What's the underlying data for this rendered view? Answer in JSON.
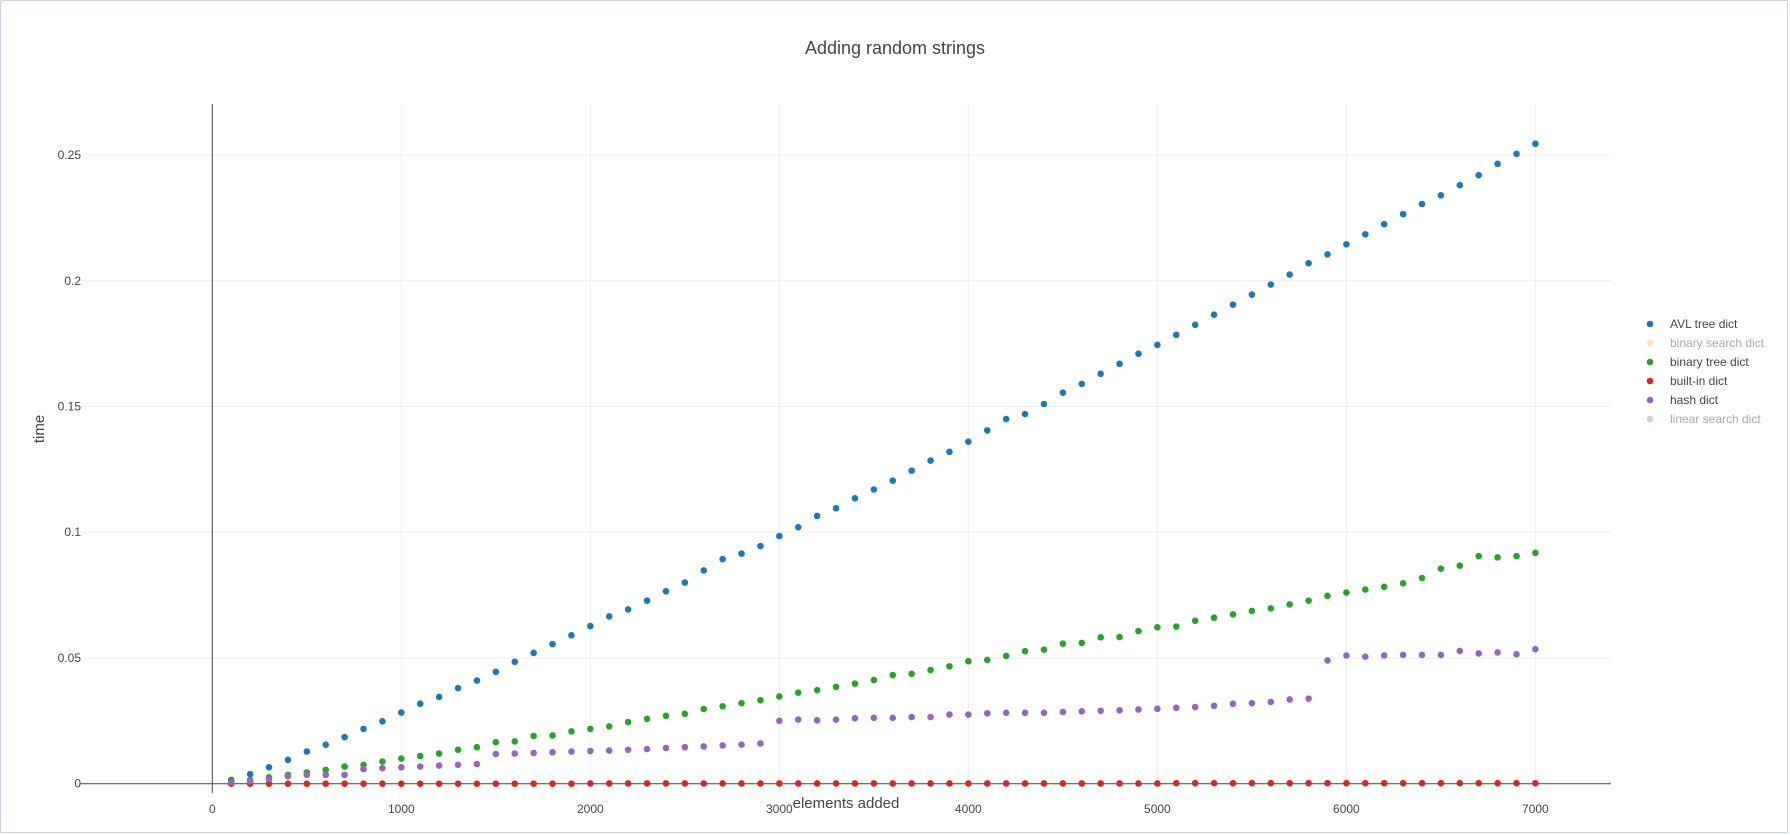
{
  "chart_data": {
    "type": "scatter",
    "title": "Adding random strings",
    "xlabel": "elements added",
    "ylabel": "time",
    "xlim": [
      -700,
      7400
    ],
    "ylim": [
      -0.0037,
      0.2703
    ],
    "xticks": [
      "0",
      "1000",
      "2000",
      "3000",
      "4000",
      "5000",
      "6000",
      "7000"
    ],
    "xtick_values": [
      0,
      1000,
      2000,
      3000,
      4000,
      5000,
      6000,
      7000
    ],
    "yticks": [
      "0",
      "0.05",
      "0.1",
      "0.15",
      "0.2",
      "0.25"
    ],
    "ytick_values": [
      0,
      0.05,
      0.1,
      0.15,
      0.2,
      0.25
    ],
    "grid": true,
    "legend_position": "right",
    "series": [
      {
        "name": "AVL tree dict",
        "color": "#1f77b4",
        "visible": true,
        "y": [
          0.0015,
          0.0038,
          0.0065,
          0.0095,
          0.0128,
          0.0155,
          0.0185,
          0.0218,
          0.0248,
          0.0283,
          0.0318,
          0.0345,
          0.038,
          0.041,
          0.0445,
          0.0485,
          0.052,
          0.0555,
          0.059,
          0.0627,
          0.0665,
          0.0693,
          0.0728,
          0.0765,
          0.08,
          0.0848,
          0.0893,
          0.0915,
          0.0945,
          0.0985,
          0.102,
          0.1065,
          0.1095,
          0.1135,
          0.117,
          0.1205,
          0.1245,
          0.1285,
          0.132,
          0.136,
          0.1405,
          0.145,
          0.147,
          0.151,
          0.1555,
          0.159,
          0.163,
          0.167,
          0.171,
          0.1745,
          0.1785,
          0.1825,
          0.1865,
          0.1905,
          0.1945,
          0.1985,
          0.2025,
          0.207,
          0.2105,
          0.2145,
          0.2185,
          0.2225,
          0.2265,
          0.2305,
          0.234,
          0.238,
          0.242,
          0.2465,
          0.2505,
          0.2545
        ]
      },
      {
        "name": "binary search dict",
        "color": "#ffbf80",
        "visible": false,
        "y": []
      },
      {
        "name": "binary tree dict",
        "color": "#2ca02c",
        "visible": true,
        "y": [
          0.001,
          0.0015,
          0.0025,
          0.0035,
          0.0045,
          0.0055,
          0.0068,
          0.0075,
          0.0088,
          0.01,
          0.011,
          0.012,
          0.0135,
          0.0145,
          0.0165,
          0.0168,
          0.019,
          0.0192,
          0.0208,
          0.0218,
          0.0228,
          0.0245,
          0.0258,
          0.027,
          0.0278,
          0.0297,
          0.0308,
          0.032,
          0.0332,
          0.0347,
          0.0362,
          0.0372,
          0.0385,
          0.0398,
          0.0412,
          0.0432,
          0.0437,
          0.0452,
          0.0467,
          0.0487,
          0.0492,
          0.0508,
          0.0527,
          0.0533,
          0.0557,
          0.056,
          0.0582,
          0.0583,
          0.0607,
          0.0622,
          0.0625,
          0.0648,
          0.066,
          0.0673,
          0.0687,
          0.0697,
          0.0713,
          0.0728,
          0.0747,
          0.076,
          0.0772,
          0.0783,
          0.0797,
          0.0818,
          0.0855,
          0.0867,
          0.0905,
          0.09,
          0.0905,
          0.0918
        ]
      },
      {
        "name": "built-in dict",
        "color": "#d62728",
        "visible": true,
        "y": [
          0.0,
          0.0,
          0.0,
          0.0,
          0.0,
          0.0,
          0.0,
          0.0,
          0.0,
          0.0,
          0.0,
          0.0,
          0.0,
          0.0,
          0.0,
          0.0,
          0.0,
          0.0,
          0.0,
          0.0001,
          0.0001,
          0.0001,
          0.0001,
          0.0001,
          0.0001,
          0.0001,
          0.0001,
          0.0001,
          0.0001,
          0.0001,
          0.0001,
          0.0001,
          0.0001,
          0.0001,
          0.0001,
          0.0001,
          0.0001,
          0.0001,
          0.0001,
          0.0001,
          0.0001,
          0.0001,
          0.0001,
          0.0001,
          0.0001,
          0.0001,
          0.0001,
          0.0001,
          0.0001,
          0.0001,
          0.0002,
          0.0002,
          0.0002,
          0.0002,
          0.0002,
          0.0002,
          0.0002,
          0.0002,
          0.0002,
          0.0002,
          0.0002,
          0.0002,
          0.0002,
          0.0002,
          0.0002,
          0.0002,
          0.0002,
          0.0002,
          0.0002,
          0.0002
        ]
      },
      {
        "name": "hash dict",
        "color": "#9467bd",
        "visible": true,
        "y": [
          0.0005,
          0.001,
          0.0018,
          0.003,
          0.0035,
          0.0035,
          0.0035,
          0.0058,
          0.0062,
          0.0065,
          0.0068,
          0.0072,
          0.0075,
          0.0078,
          0.0118,
          0.012,
          0.0122,
          0.0125,
          0.0128,
          0.013,
          0.0132,
          0.0135,
          0.0138,
          0.0142,
          0.0145,
          0.0148,
          0.0152,
          0.0155,
          0.016,
          0.025,
          0.0255,
          0.0252,
          0.0255,
          0.026,
          0.0262,
          0.0262,
          0.0265,
          0.0265,
          0.0275,
          0.0275,
          0.028,
          0.0282,
          0.0282,
          0.0282,
          0.0285,
          0.0288,
          0.029,
          0.0292,
          0.0295,
          0.0298,
          0.0302,
          0.0305,
          0.031,
          0.0318,
          0.032,
          0.0325,
          0.0335,
          0.0338,
          0.049,
          0.051,
          0.0505,
          0.051,
          0.0512,
          0.0512,
          0.0512,
          0.0528,
          0.0518,
          0.0522,
          0.0515,
          0.0535
        ]
      },
      {
        "name": "linear search dict",
        "color": "#c49c94",
        "visible": false,
        "y": []
      }
    ],
    "x": [
      100,
      200,
      300,
      400,
      500,
      600,
      700,
      800,
      900,
      1000,
      1100,
      1200,
      1300,
      1400,
      1500,
      1600,
      1700,
      1800,
      1900,
      2000,
      2100,
      2200,
      2300,
      2400,
      2500,
      2600,
      2700,
      2800,
      2900,
      3000,
      3100,
      3200,
      3300,
      3400,
      3500,
      3600,
      3700,
      3800,
      3900,
      4000,
      4100,
      4200,
      4300,
      4400,
      4500,
      4600,
      4700,
      4800,
      4900,
      5000,
      5100,
      5200,
      5300,
      5400,
      5500,
      5600,
      5700,
      5800,
      5900,
      6000,
      6100,
      6200,
      6300,
      6400,
      6500,
      6600,
      6700,
      6800,
      6900,
      7000
    ]
  }
}
